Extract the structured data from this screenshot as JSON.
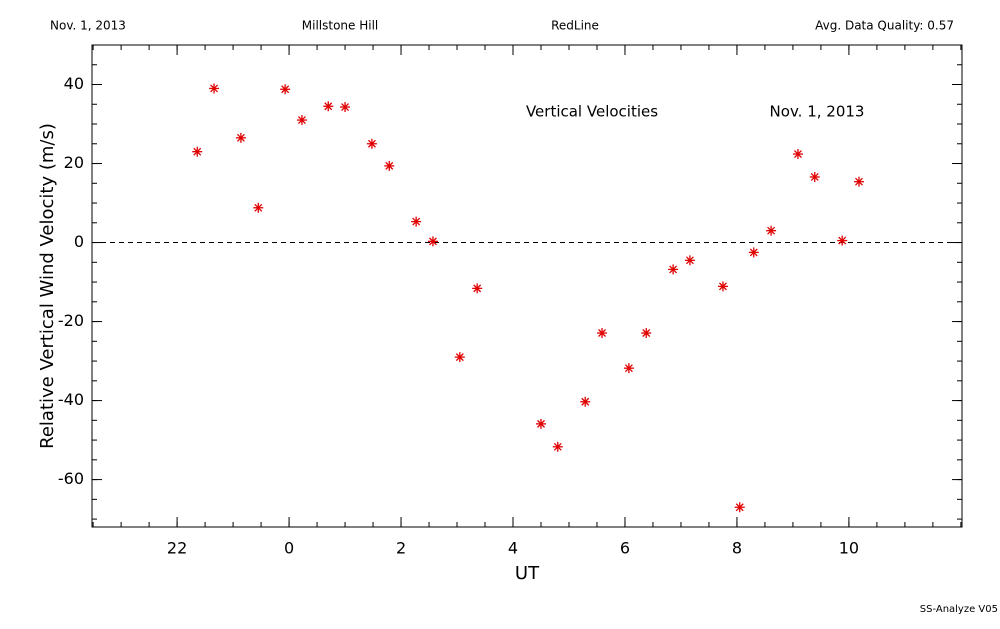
{
  "chart_data": {
    "type": "scatter",
    "header": [
      "Nov. 1, 2013",
      "Millstone Hill",
      "RedLine",
      "Avg. Data Quality: 0.57"
    ],
    "annotations": [
      "Vertical Velocities",
      "Nov. 1, 2013"
    ],
    "footer": "SS-Analyze V05",
    "x_label": "UT",
    "y_label": "Relative Vertical Wind Velocity (m/s)",
    "xlim": [
      -3.52,
      12.02
    ],
    "ylim": [
      -72,
      50
    ],
    "xticks": [
      {
        "value": -2,
        "label": "22"
      },
      0,
      2,
      4,
      6,
      8,
      10
    ],
    "yticks": [
      -60,
      -40,
      -20,
      0,
      20,
      40
    ],
    "xminor": 0.5,
    "yminor": 5,
    "zero_line": true,
    "color": "#e00000",
    "x": [
      -1.64,
      -1.34,
      -0.86,
      -0.55,
      -0.07,
      0.23,
      0.7,
      1.0,
      1.48,
      1.79,
      2.27,
      2.57,
      3.05,
      3.36,
      4.5,
      4.8,
      5.29,
      5.59,
      6.07,
      6.38,
      6.86,
      7.16,
      7.75,
      8.05,
      8.3,
      8.61,
      9.09,
      9.39,
      9.88,
      10.18
    ],
    "values": [
      23,
      39,
      26.5,
      8.8,
      38.8,
      31,
      34.5,
      34.3,
      25,
      19.4,
      5.3,
      0.3,
      -29,
      -11.6,
      -45.9,
      -51.7,
      -40.3,
      -22.9,
      -31.8,
      -22.9,
      -6.8,
      -4.5,
      -11.1,
      -67,
      -2.5,
      3,
      22.4,
      16.6,
      0.5,
      15.4
    ]
  }
}
